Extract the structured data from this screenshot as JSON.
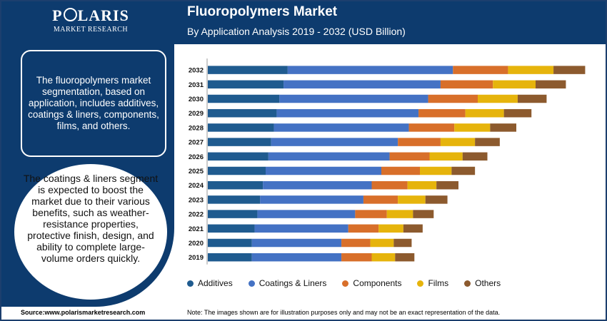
{
  "brand": {
    "name_pre": "P",
    "name_post": "LARIS",
    "sub": "MARKET RESEARCH"
  },
  "header": {
    "title": "Fluoropolymers Market",
    "subtitle": "By Application Analysis 2019 - 2032 (USD Billion)"
  },
  "panel": {
    "text1": "The fluoropolymers market segmentation, based on application, includes additives, coatings & liners, components, films, and others.",
    "text2": "The coatings & liners segment is expected to boost the market due to their various benefits, such as weather-resistance properties, protective finish, design, and ability to complete large-volume orders quickly."
  },
  "footer": {
    "source": "Source:www.polarismarketresearch.com",
    "note": "Note: The images shown are for illustration purposes only and may not be an exact representation of the data."
  },
  "colors": {
    "dark_navy": "#0d3b6e",
    "additives": "#1f5b8f",
    "coatings_liners": "#4472c4",
    "components": "#d86f2a",
    "films": "#e6b40c",
    "others": "#8c5a2e"
  },
  "chart_data": {
    "type": "bar",
    "orientation": "horizontal",
    "stacked": true,
    "categories": [
      "2032",
      "2031",
      "2030",
      "2029",
      "2028",
      "2027",
      "2026",
      "2025",
      "2024",
      "2023",
      "2022",
      "2021",
      "2020",
      "2019"
    ],
    "series": [
      {
        "name": "Additives",
        "color": "#1f5b8f",
        "values": [
          2.9,
          2.75,
          2.6,
          2.5,
          2.4,
          2.3,
          2.2,
          2.1,
          2.0,
          1.9,
          1.8,
          1.7,
          1.6,
          1.6
        ]
      },
      {
        "name": "Coatings & Liners",
        "color": "#4472c4",
        "values": [
          6.0,
          5.7,
          5.4,
          5.15,
          4.9,
          4.6,
          4.4,
          4.2,
          3.95,
          3.75,
          3.55,
          3.4,
          3.25,
          3.25
        ]
      },
      {
        "name": "Components",
        "color": "#d86f2a",
        "values": [
          2.0,
          1.9,
          1.8,
          1.7,
          1.65,
          1.55,
          1.45,
          1.4,
          1.3,
          1.25,
          1.15,
          1.1,
          1.05,
          1.1
        ]
      },
      {
        "name": "Films",
        "color": "#e6b40c",
        "values": [
          1.65,
          1.55,
          1.45,
          1.4,
          1.3,
          1.25,
          1.2,
          1.15,
          1.05,
          1.0,
          0.95,
          0.9,
          0.85,
          0.85
        ]
      },
      {
        "name": "Others",
        "color": "#8c5a2e",
        "values": [
          1.15,
          1.1,
          1.05,
          1.0,
          0.95,
          0.9,
          0.9,
          0.85,
          0.8,
          0.8,
          0.75,
          0.7,
          0.65,
          0.7
        ]
      }
    ],
    "xlim": [
      0,
      14
    ],
    "title": "Fluoropolymers Market",
    "subtitle": "By Application Analysis 2019 - 2032 (USD Billion)",
    "legend_position": "bottom",
    "grid": false
  }
}
